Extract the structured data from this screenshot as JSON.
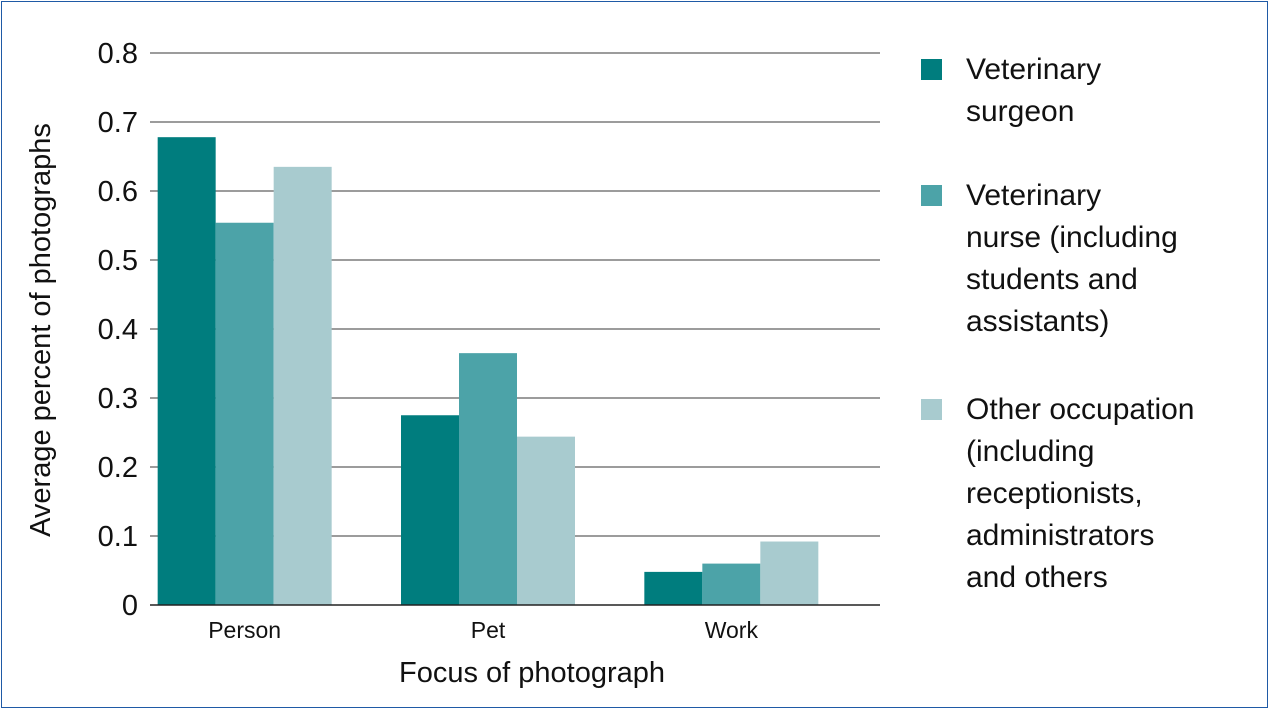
{
  "chart_data": {
    "type": "bar",
    "title": "",
    "xlabel": "Focus of photograph",
    "ylabel": "Average percent of photographs",
    "categories": [
      "Person",
      "Pet",
      "Work"
    ],
    "ylim": [
      0,
      0.8
    ],
    "yticks": [
      "0",
      "0.1",
      "0.2",
      "0.3",
      "0.4",
      "0.5",
      "0.6",
      "0.7",
      "0.8"
    ],
    "grid": true,
    "legend_position": "right",
    "series": [
      {
        "name": "Veterinary surgeon",
        "legend_lines": [
          "Veterinary",
          "surgeon"
        ],
        "color": "#007d7e",
        "values": [
          0.678,
          0.275,
          0.048
        ]
      },
      {
        "name": "Veterinary nurse (including students and assistants)",
        "legend_lines": [
          "Veterinary",
          "nurse (including",
          "students and",
          "assistants)"
        ],
        "color": "#4ca3a8",
        "values": [
          0.554,
          0.365,
          0.06
        ]
      },
      {
        "name": "Other occupation (including receptionists, administrators and others",
        "legend_lines": [
          "Other occupation",
          "(including",
          "receptionists,",
          "administrators",
          "and others"
        ],
        "color": "#a8cbcf",
        "values": [
          0.635,
          0.244,
          0.092
        ]
      }
    ]
  }
}
